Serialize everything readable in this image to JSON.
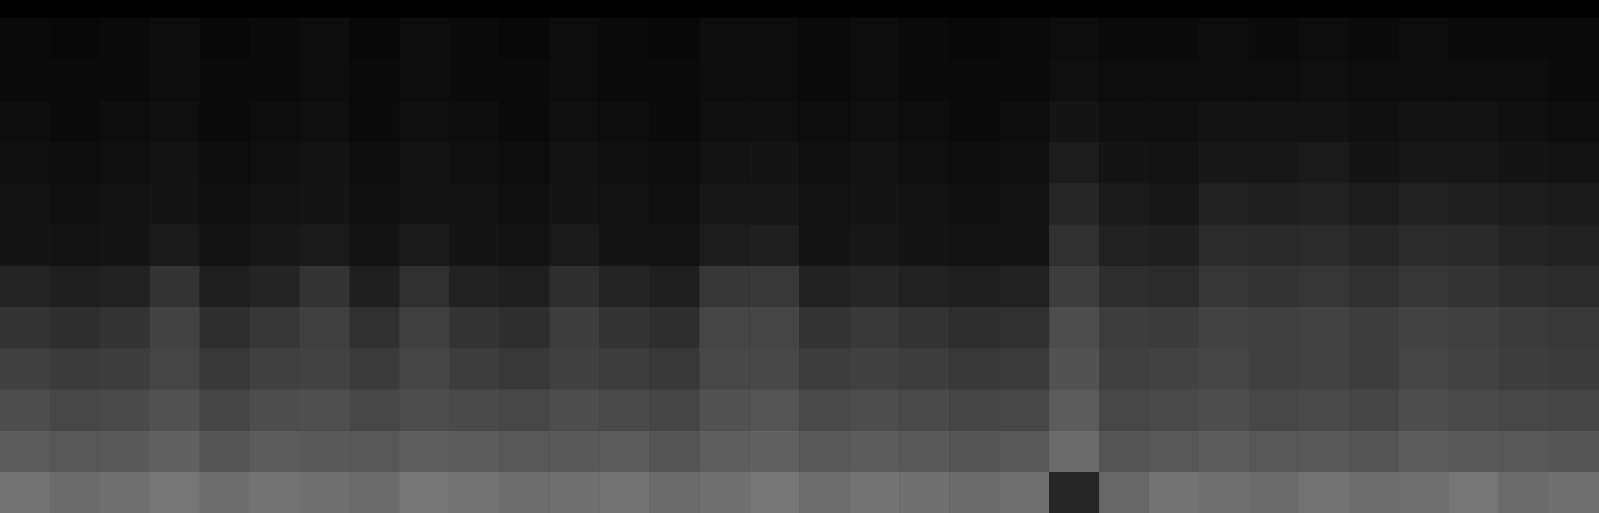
{
  "chart_data": {
    "type": "heatmap",
    "tick_labels": false,
    "grid": false,
    "zlim": [
      0,
      1
    ],
    "cells": [
      [
        0.45,
        0.42,
        0.44,
        0.46,
        0.43,
        0.45,
        0.44,
        0.42,
        0.46,
        0.45,
        0.43,
        0.44,
        0.45,
        0.42,
        0.44,
        0.46,
        0.43,
        0.45,
        0.44,
        0.42,
        0.44,
        0.15,
        0.4,
        0.45,
        0.44,
        0.42,
        0.45,
        0.43,
        0.44,
        0.46,
        0.42,
        0.44
      ],
      [
        0.36,
        0.34,
        0.35,
        0.38,
        0.33,
        0.36,
        0.35,
        0.34,
        0.37,
        0.36,
        0.34,
        0.35,
        0.36,
        0.33,
        0.37,
        0.38,
        0.35,
        0.36,
        0.35,
        0.33,
        0.35,
        0.42,
        0.33,
        0.34,
        0.36,
        0.34,
        0.35,
        0.33,
        0.36,
        0.35,
        0.34,
        0.33
      ],
      [
        0.3,
        0.28,
        0.29,
        0.32,
        0.27,
        0.3,
        0.31,
        0.28,
        0.3,
        0.29,
        0.28,
        0.3,
        0.29,
        0.27,
        0.32,
        0.33,
        0.29,
        0.3,
        0.29,
        0.27,
        0.28,
        0.36,
        0.28,
        0.29,
        0.3,
        0.28,
        0.29,
        0.27,
        0.3,
        0.29,
        0.28,
        0.27
      ],
      [
        0.25,
        0.23,
        0.24,
        0.27,
        0.22,
        0.25,
        0.26,
        0.23,
        0.27,
        0.24,
        0.22,
        0.25,
        0.24,
        0.22,
        0.28,
        0.28,
        0.24,
        0.25,
        0.24,
        0.22,
        0.23,
        0.32,
        0.25,
        0.26,
        0.27,
        0.25,
        0.26,
        0.24,
        0.27,
        0.26,
        0.24,
        0.23
      ],
      [
        0.2,
        0.18,
        0.2,
        0.26,
        0.18,
        0.21,
        0.25,
        0.19,
        0.25,
        0.2,
        0.18,
        0.24,
        0.2,
        0.18,
        0.27,
        0.27,
        0.2,
        0.22,
        0.2,
        0.18,
        0.19,
        0.3,
        0.24,
        0.23,
        0.26,
        0.25,
        0.26,
        0.24,
        0.26,
        0.25,
        0.23,
        0.22
      ],
      [
        0.14,
        0.12,
        0.13,
        0.2,
        0.12,
        0.14,
        0.2,
        0.12,
        0.19,
        0.13,
        0.12,
        0.18,
        0.14,
        0.12,
        0.21,
        0.22,
        0.13,
        0.15,
        0.13,
        0.12,
        0.13,
        0.24,
        0.18,
        0.17,
        0.21,
        0.2,
        0.21,
        0.19,
        0.21,
        0.2,
        0.18,
        0.17
      ],
      [
        0.08,
        0.07,
        0.08,
        0.1,
        0.07,
        0.09,
        0.1,
        0.07,
        0.1,
        0.08,
        0.07,
        0.1,
        0.08,
        0.07,
        0.11,
        0.12,
        0.08,
        0.09,
        0.08,
        0.07,
        0.08,
        0.19,
        0.13,
        0.12,
        0.17,
        0.16,
        0.17,
        0.15,
        0.17,
        0.16,
        0.14,
        0.13
      ],
      [
        0.07,
        0.06,
        0.07,
        0.08,
        0.06,
        0.07,
        0.08,
        0.06,
        0.08,
        0.07,
        0.06,
        0.08,
        0.07,
        0.06,
        0.09,
        0.09,
        0.07,
        0.08,
        0.07,
        0.06,
        0.07,
        0.15,
        0.1,
        0.09,
        0.13,
        0.12,
        0.13,
        0.11,
        0.13,
        0.12,
        0.11,
        0.1
      ],
      [
        0.06,
        0.05,
        0.06,
        0.07,
        0.05,
        0.06,
        0.07,
        0.05,
        0.07,
        0.06,
        0.05,
        0.07,
        0.06,
        0.05,
        0.07,
        0.08,
        0.06,
        0.07,
        0.06,
        0.05,
        0.06,
        0.11,
        0.08,
        0.07,
        0.09,
        0.09,
        0.1,
        0.08,
        0.09,
        0.09,
        0.08,
        0.07
      ],
      [
        0.05,
        0.04,
        0.05,
        0.06,
        0.04,
        0.05,
        0.06,
        0.04,
        0.06,
        0.05,
        0.04,
        0.06,
        0.05,
        0.04,
        0.06,
        0.06,
        0.05,
        0.06,
        0.05,
        0.04,
        0.05,
        0.08,
        0.06,
        0.06,
        0.07,
        0.07,
        0.07,
        0.06,
        0.07,
        0.07,
        0.06,
        0.05
      ],
      [
        0.04,
        0.04,
        0.04,
        0.05,
        0.04,
        0.04,
        0.05,
        0.04,
        0.05,
        0.04,
        0.04,
        0.05,
        0.04,
        0.04,
        0.05,
        0.05,
        0.04,
        0.05,
        0.04,
        0.04,
        0.04,
        0.06,
        0.05,
        0.05,
        0.05,
        0.05,
        0.06,
        0.05,
        0.05,
        0.05,
        0.05,
        0.04
      ],
      [
        0.04,
        0.03,
        0.04,
        0.05,
        0.03,
        0.04,
        0.05,
        0.03,
        0.05,
        0.04,
        0.03,
        0.05,
        0.04,
        0.03,
        0.05,
        0.05,
        0.04,
        0.05,
        0.04,
        0.03,
        0.04,
        0.05,
        0.04,
        0.04,
        0.05,
        0.04,
        0.05,
        0.04,
        0.05,
        0.04,
        0.04,
        0.04
      ]
    ]
  }
}
